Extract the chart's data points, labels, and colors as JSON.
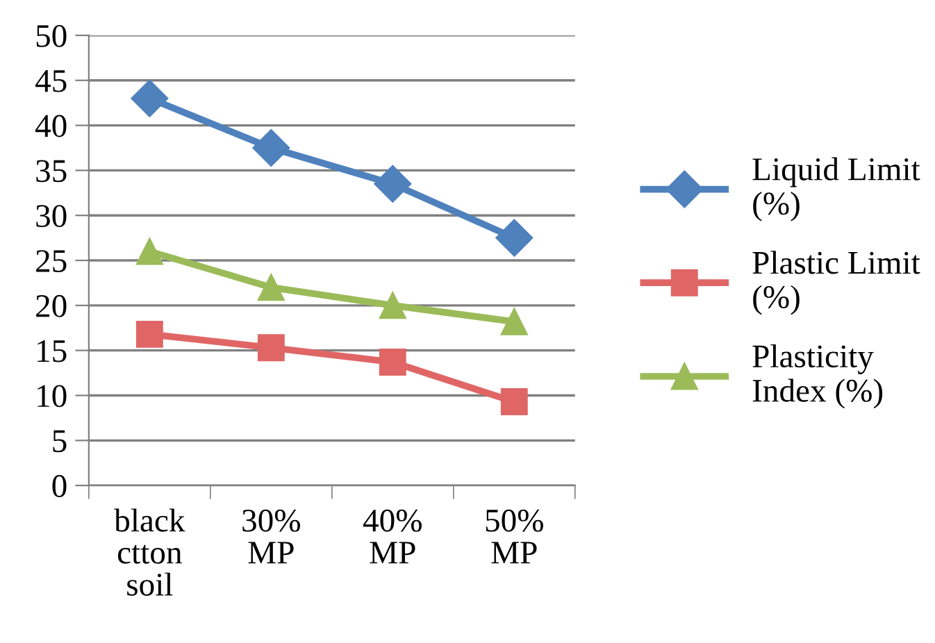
{
  "chart_data": {
    "type": "line",
    "categories": [
      "black\nctton\nsoil",
      "30%\nMP",
      "40%\nMP",
      "50%\nMP"
    ],
    "series": [
      {
        "name": "Liquid Limit\n(%)",
        "color": "#4f81bd",
        "marker": "diamond",
        "values": [
          43,
          37.5,
          33.5,
          27.5
        ]
      },
      {
        "name": "Plastic Limit\n(%)",
        "color": "#e06666",
        "marker": "square",
        "values": [
          16.8,
          15.3,
          13.7,
          9.3
        ]
      },
      {
        "name": "Plasticity\nIndex (%)",
        "color": "#9bbb59",
        "marker": "triangle",
        "values": [
          26,
          22,
          20,
          18.2
        ]
      }
    ],
    "ylim": [
      0,
      50
    ],
    "yticks": [
      0,
      5,
      10,
      15,
      20,
      25,
      30,
      35,
      40,
      45,
      50
    ],
    "grid": "y",
    "legend": "right",
    "line_style": "solid"
  }
}
